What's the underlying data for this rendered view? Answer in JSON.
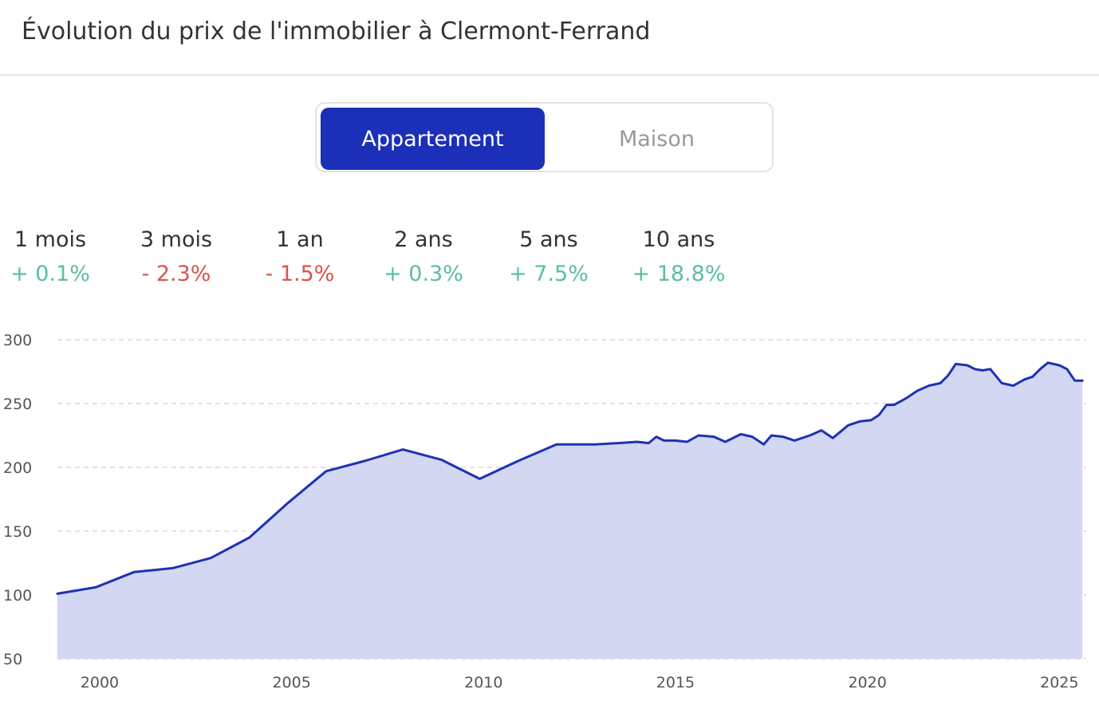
{
  "header": {
    "title": "Évolution du prix de l'immobilier à Clermont-Ferrand"
  },
  "tabs": {
    "items": [
      "Appartement",
      "Maison"
    ],
    "active": 0,
    "active_color": "#1c2fb8"
  },
  "stats": [
    {
      "period": "1 mois",
      "change": "+ 0.1%",
      "color": "#5cbf9a"
    },
    {
      "period": "3 mois",
      "change": "- 2.3%",
      "color": "#d9534f"
    },
    {
      "period": "1 an",
      "change": "- 1.5%",
      "color": "#d9534f"
    },
    {
      "period": "2 ans",
      "change": "+ 0.3%",
      "color": "#5cbf9a"
    },
    {
      "period": "5 ans",
      "change": "+ 7.5%",
      "color": "#5cbf9a"
    },
    {
      "period": "10 ans",
      "change": "+ 18.8%",
      "color": "#5cbf9a"
    }
  ],
  "chart_data": {
    "type": "area",
    "x": [
      1998.9,
      1999.9,
      2000.9,
      2001.9,
      2002.9,
      2003.9,
      2004.9,
      2005.9,
      2006.9,
      2007.9,
      2008.9,
      2009.9,
      2010.9,
      2011.9,
      2012.9,
      2013.5,
      2014,
      2014.3,
      2014.5,
      2014.7,
      2015,
      2015.3,
      2015.6,
      2016,
      2016.3,
      2016.7,
      2017,
      2017.3,
      2017.5,
      2017.8,
      2018.1,
      2018.5,
      2018.8,
      2019.1,
      2019.5,
      2019.8,
      2020.1,
      2020.3,
      2020.5,
      2020.7,
      2021,
      2021.3,
      2021.6,
      2021.9,
      2022.1,
      2022.3,
      2022.6,
      2022.8,
      2023,
      2023.2,
      2023.5,
      2023.8,
      2024.1,
      2024.3,
      2024.5,
      2024.7,
      2025,
      2025.2,
      2025.4,
      2025.6
    ],
    "values": [
      101,
      106,
      118,
      121,
      129,
      145,
      172,
      197,
      205,
      214,
      206,
      191,
      205,
      218,
      218,
      219,
      220,
      219,
      224,
      221,
      221,
      220,
      225,
      224,
      220,
      226,
      224,
      218,
      225,
      224,
      221,
      225,
      229,
      223,
      233,
      236,
      237,
      241,
      249,
      249,
      254,
      260,
      264,
      266,
      272,
      281,
      280,
      277,
      276,
      277,
      266,
      264,
      269,
      271,
      277,
      282,
      280,
      277,
      268,
      268
    ],
    "color": "#1e32b4",
    "fill_color": "#d3d7f2",
    "xlim": [
      1998.9,
      2025.7
    ],
    "xticks": [
      2000,
      2005,
      2010,
      2015,
      2020,
      2025
    ],
    "ylim": [
      50,
      300
    ],
    "yticks": [
      50,
      100,
      150,
      200,
      250,
      300
    ],
    "grid": true
  }
}
